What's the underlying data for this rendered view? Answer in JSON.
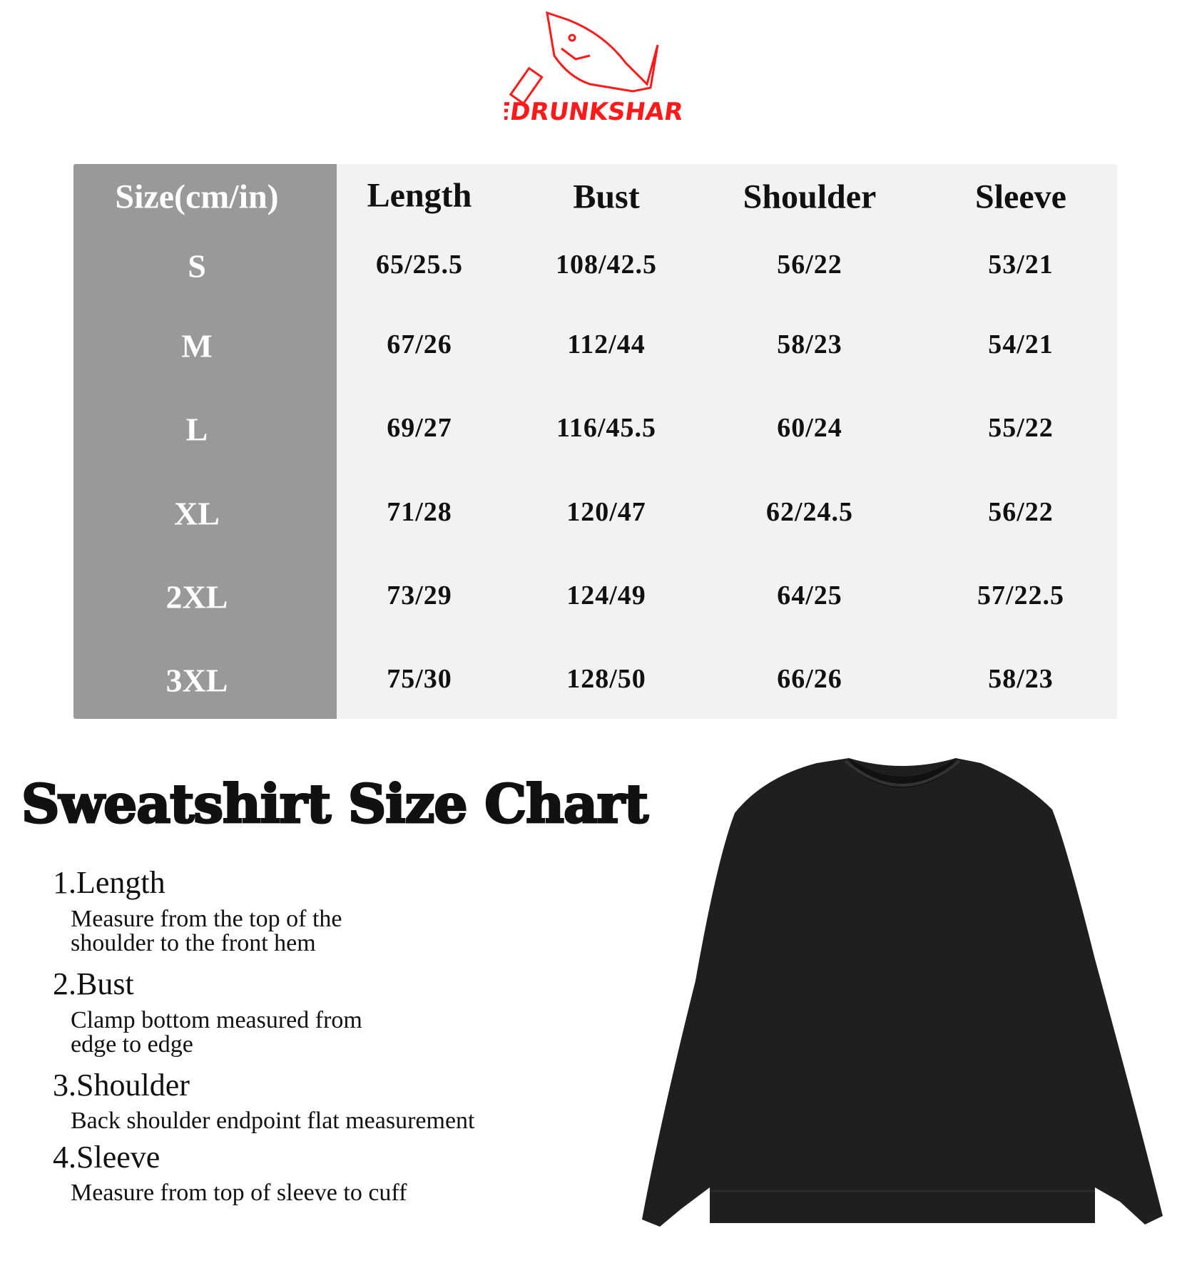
{
  "brand": {
    "logo_text": "THEDRUNKSHARK",
    "logo_color": "#ff1a1a"
  },
  "table": {
    "header": {
      "size": "Size(cm/in)",
      "columns": [
        "Length",
        "Bust",
        "Shoulder",
        "Sleeve"
      ]
    },
    "rows": [
      {
        "size": "S",
        "values": [
          "65/25.5",
          "108/42.5",
          "56/22",
          "53/21"
        ]
      },
      {
        "size": "M",
        "values": [
          "67/26",
          "112/44",
          "58/23",
          "54/21"
        ]
      },
      {
        "size": "L",
        "values": [
          "69/27",
          "116/45.5",
          "60/24",
          "55/22"
        ]
      },
      {
        "size": "XL",
        "values": [
          "71/28",
          "120/47",
          "62/24.5",
          "56/22"
        ]
      },
      {
        "size": "2XL",
        "values": [
          "73/29",
          "124/49",
          "64/25",
          "57/22.5"
        ]
      },
      {
        "size": "3XL",
        "values": [
          "75/30",
          "128/50",
          "66/26",
          "58/23"
        ]
      }
    ],
    "colors": {
      "size_column": "#999999",
      "body": "#f2f2f2"
    }
  },
  "title": "Sweatshirt Size Chart",
  "measurements": [
    {
      "label": "1.Length",
      "desc": [
        "Measure from the top of the",
        "shoulder to the front hem"
      ]
    },
    {
      "label": "2.Bust",
      "desc": [
        "Clamp bottom measured from",
        "edge to edge"
      ]
    },
    {
      "label": "3.Shoulder",
      "desc": [
        "Back shoulder endpoint flat measurement"
      ]
    },
    {
      "label": "4.Sleeve",
      "desc": [
        "Measure from top of sleeve to cuff"
      ]
    }
  ]
}
